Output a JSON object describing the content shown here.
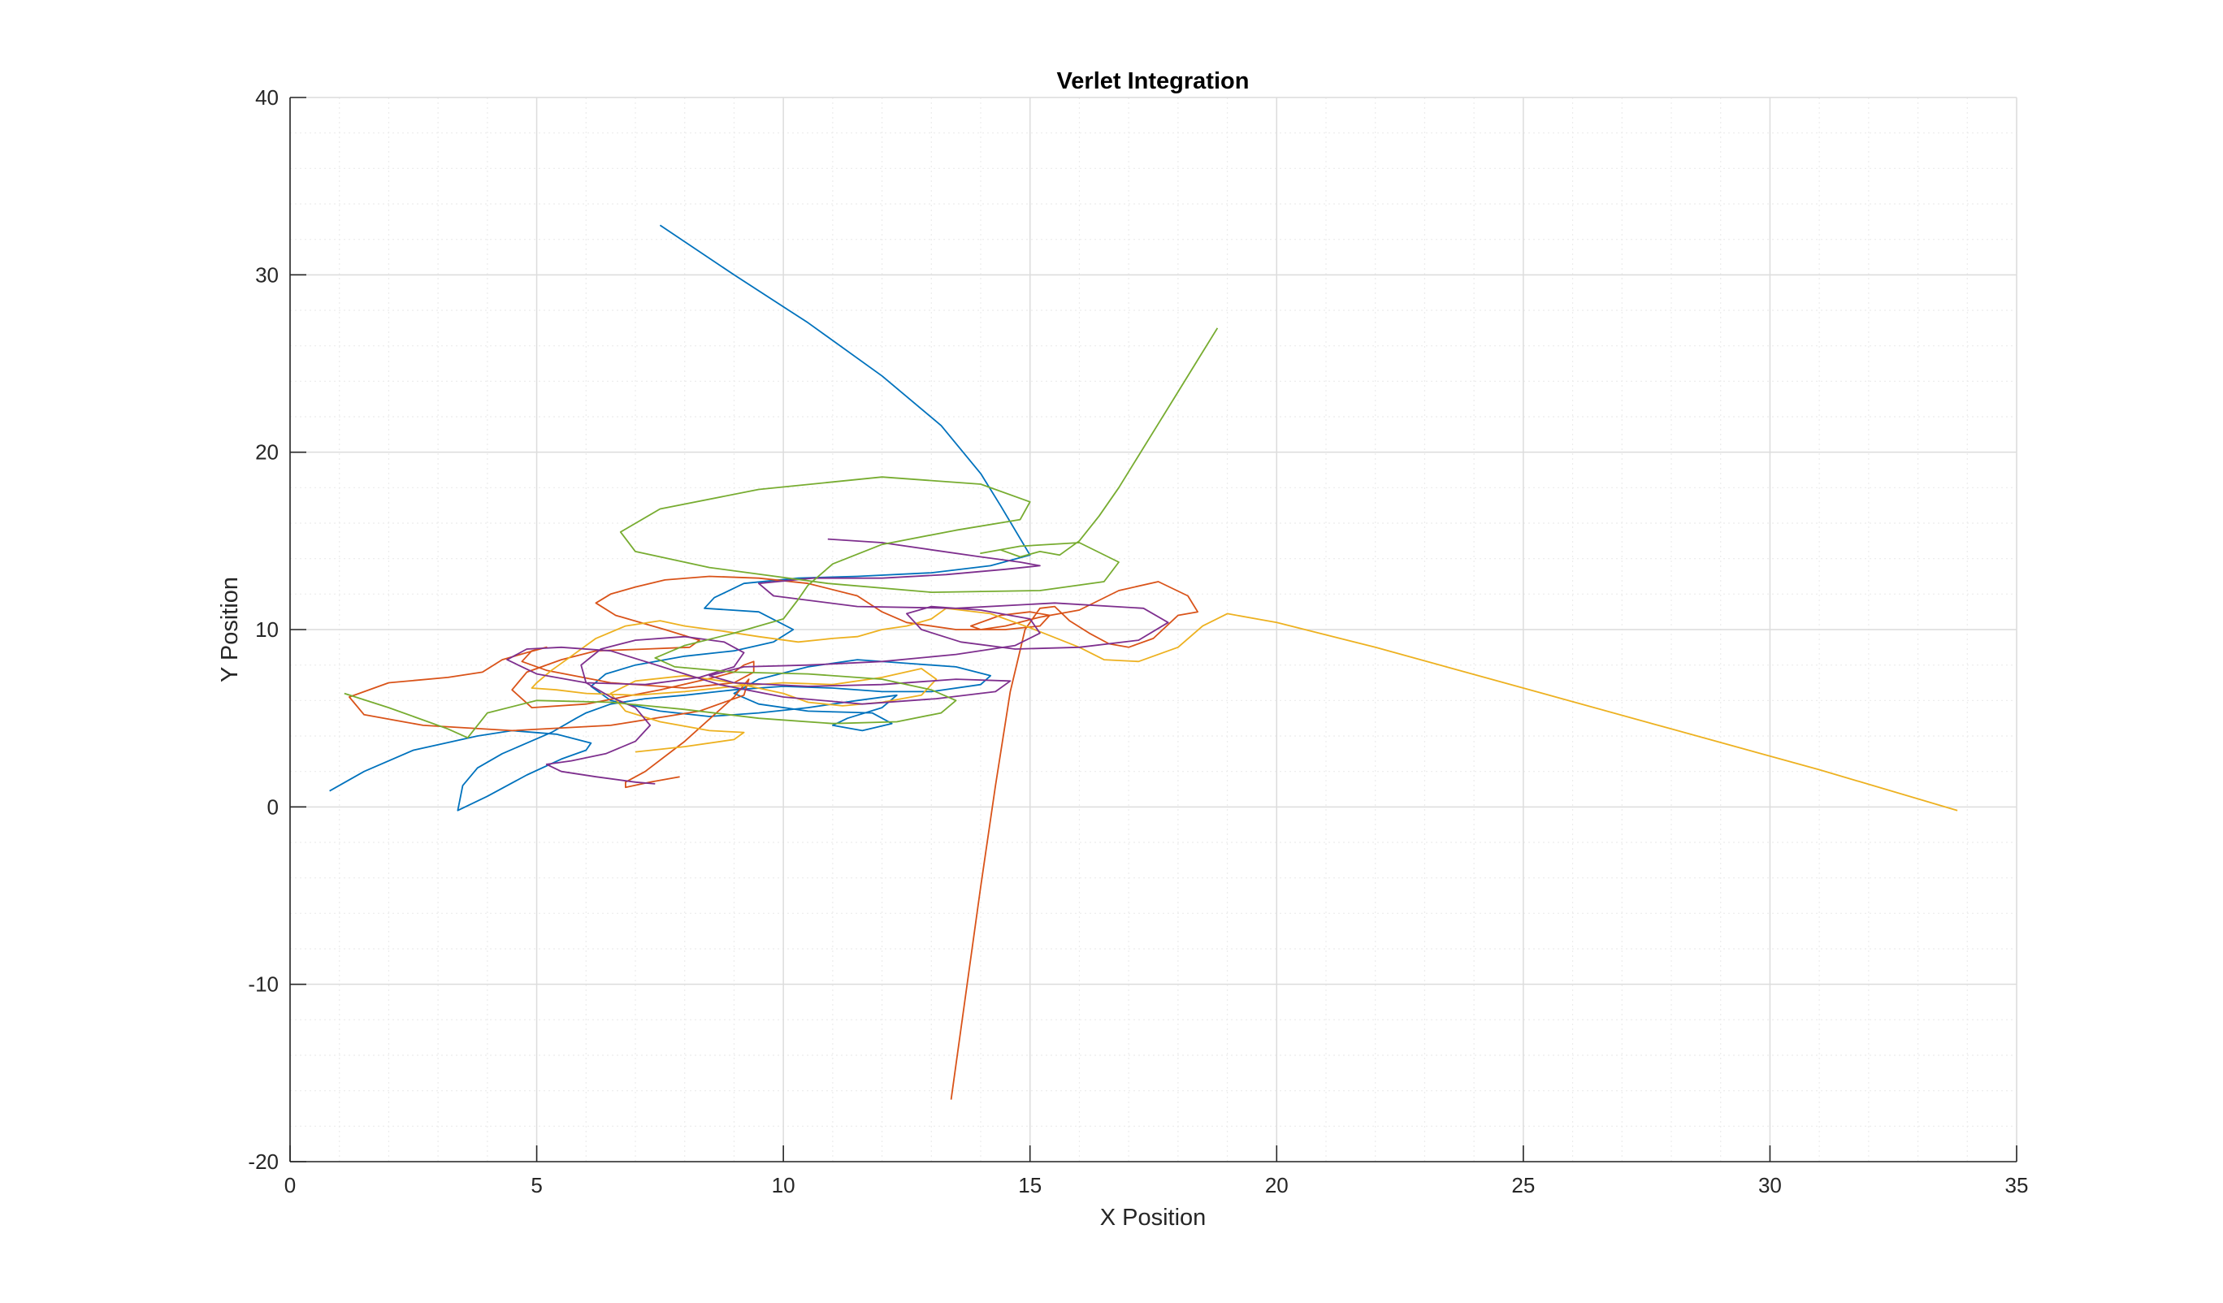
{
  "chart_data": {
    "type": "line",
    "title": "Verlet Integration",
    "xlabel": "X Position",
    "ylabel": "Y Position",
    "xlim": [
      0,
      35
    ],
    "ylim": [
      -20,
      40
    ],
    "xticks": [
      0,
      5,
      10,
      15,
      20,
      25,
      30,
      35
    ],
    "yticks": [
      -20,
      -10,
      0,
      10,
      20,
      30,
      40
    ],
    "grid": true,
    "minor_grid": true,
    "legend": "none",
    "colors": [
      "#0072BD",
      "#D95319",
      "#EDB120",
      "#7E2F8E",
      "#77AC30"
    ],
    "series": [
      {
        "color": "#0072BD",
        "x": [
          7.5,
          9.0,
          10.5,
          12.0,
          13.2,
          14.0,
          14.4,
          15.0,
          14.2,
          13.0,
          11.5,
          10.3,
          9.2,
          8.6,
          8.4,
          9.5,
          10.2,
          9.8,
          9.0,
          8.0,
          7.0,
          6.4,
          6.1,
          6.5,
          7.5,
          8.5,
          9.5,
          10.5,
          11.5,
          12.3,
          12.0,
          11.3,
          11.0,
          11.6,
          12.2,
          11.8,
          10.5,
          9.5,
          9.0,
          9.5,
          10.5,
          11.5,
          12.5,
          13.5,
          14.2,
          14.0,
          13.0,
          12.0,
          11.0,
          10.0,
          9.0,
          8.0,
          7.2,
          6.5,
          6.0,
          5.8,
          5.3,
          4.8,
          4.3,
          3.8,
          3.5,
          3.4,
          4.0,
          4.8,
          5.5,
          6.0,
          6.1,
          5.4,
          4.5,
          3.8,
          2.5,
          1.5,
          0.8
        ],
        "y": [
          32.8,
          30.0,
          27.3,
          24.3,
          21.5,
          18.8,
          17.0,
          14.2,
          13.6,
          13.2,
          13.0,
          12.9,
          12.6,
          11.8,
          11.2,
          11.0,
          10.0,
          9.3,
          8.8,
          8.5,
          8.0,
          7.5,
          6.8,
          6.0,
          5.4,
          5.1,
          5.3,
          5.6,
          6.0,
          6.3,
          5.6,
          5.0,
          4.6,
          4.3,
          4.7,
          5.3,
          5.4,
          5.8,
          6.4,
          7.2,
          7.9,
          8.3,
          8.1,
          7.9,
          7.4,
          6.9,
          6.5,
          6.5,
          6.7,
          6.8,
          6.6,
          6.3,
          6.1,
          5.8,
          5.3,
          5.0,
          4.2,
          3.6,
          3.0,
          2.2,
          1.2,
          -0.2,
          0.6,
          1.8,
          2.7,
          3.2,
          3.6,
          4.1,
          4.3,
          4.0,
          3.2,
          2.0,
          0.9
        ]
      },
      {
        "color": "#D95319",
        "x": [
          13.4,
          13.7,
          14.0,
          14.3,
          14.6,
          14.9,
          15.2,
          15.5,
          15.8,
          16.2,
          16.6,
          17.0,
          17.5,
          18.0,
          18.4,
          18.2,
          17.6,
          16.8,
          16.0,
          15.2,
          14.5,
          14.0,
          13.8,
          14.4,
          15.0,
          15.4,
          15.2,
          14.5,
          13.5,
          12.5,
          12.0,
          11.5,
          10.5,
          9.5,
          8.5,
          7.6,
          7.0,
          6.5,
          6.2,
          6.6,
          7.6,
          8.3,
          8.1,
          7.2,
          6.2,
          5.5,
          4.8,
          4.5,
          4.9,
          6.0,
          7.5,
          8.6,
          9.0,
          9.2,
          9.4,
          9.4,
          9.0,
          8.0,
          6.5,
          5.2,
          4.7,
          4.9,
          5.2,
          4.8,
          4.3,
          3.9,
          3.2,
          2.0,
          1.2,
          1.5,
          2.7,
          4.5,
          6.5,
          8.3,
          9.2,
          9.3,
          9.0,
          8.0,
          7.2,
          6.8,
          6.8,
          7.3,
          7.9
        ],
        "y": [
          -16.5,
          -10.5,
          -4.5,
          1.2,
          6.5,
          10.0,
          11.2,
          11.3,
          10.5,
          9.8,
          9.2,
          9.0,
          9.5,
          10.8,
          11.0,
          11.9,
          12.7,
          12.2,
          11.1,
          10.7,
          10.2,
          10.0,
          10.2,
          10.8,
          11.0,
          10.8,
          10.2,
          10.0,
          10.0,
          10.4,
          11.0,
          11.9,
          12.6,
          12.9,
          13.0,
          12.8,
          12.4,
          12.0,
          11.5,
          10.8,
          10.0,
          9.4,
          9.0,
          8.9,
          8.8,
          8.3,
          7.6,
          6.6,
          5.6,
          5.8,
          6.6,
          7.3,
          7.6,
          8.0,
          8.2,
          7.6,
          7.0,
          6.7,
          7.0,
          7.7,
          8.2,
          8.8,
          9.0,
          8.7,
          8.3,
          7.6,
          7.3,
          7.0,
          6.2,
          5.2,
          4.6,
          4.3,
          4.6,
          5.4,
          6.3,
          7.2,
          6.2,
          3.7,
          2.0,
          1.4,
          1.1,
          1.4,
          1.7
        ]
      },
      {
        "color": "#EDB120",
        "x": [
          33.8,
          31.0,
          28.0,
          25.0,
          22.0,
          20.0,
          19.0,
          18.5,
          18.0,
          17.2,
          16.5,
          16.0,
          15.0,
          14.2,
          13.6,
          13.3,
          13.0,
          12.5,
          12.0,
          11.5,
          11.0,
          10.3,
          9.5,
          8.8,
          8.0,
          7.5,
          6.8,
          6.2,
          5.7,
          5.3,
          5.0,
          4.9,
          5.4,
          6.0,
          7.0,
          8.0,
          9.0,
          10.0,
          11.0,
          12.0,
          12.8,
          13.1,
          12.8,
          12.0,
          11.2,
          10.5,
          10.0,
          9.0,
          8.0,
          7.0,
          6.5,
          6.8,
          7.5,
          8.5,
          9.2,
          9.0,
          8.0,
          7.0
        ],
        "y": [
          -0.2,
          2.1,
          4.4,
          6.7,
          9.0,
          10.4,
          10.9,
          10.2,
          9.0,
          8.2,
          8.3,
          9.0,
          10.1,
          10.9,
          11.1,
          11.2,
          10.6,
          10.2,
          10.0,
          9.6,
          9.5,
          9.3,
          9.6,
          9.9,
          10.2,
          10.5,
          10.2,
          9.5,
          8.5,
          7.7,
          7.0,
          6.7,
          6.6,
          6.4,
          6.3,
          6.5,
          6.8,
          7.0,
          6.9,
          7.3,
          7.8,
          7.2,
          6.3,
          5.9,
          5.7,
          5.9,
          6.4,
          7.0,
          7.4,
          7.1,
          6.4,
          5.4,
          4.8,
          4.3,
          4.2,
          3.8,
          3.4,
          3.1
        ]
      },
      {
        "color": "#7E2F8E",
        "x": [
          10.9,
          12.0,
          13.0,
          14.0,
          14.8,
          15.2,
          14.5,
          13.3,
          12.0,
          10.6,
          9.5,
          9.8,
          11.5,
          13.5,
          15.5,
          17.3,
          17.8,
          17.2,
          16.0,
          14.7,
          13.6,
          12.8,
          12.5,
          13.0,
          14.0,
          15.0,
          15.2,
          14.7,
          13.5,
          12.0,
          10.5,
          9.2,
          8.5,
          9.0,
          10.5,
          12.0,
          13.5,
          14.6,
          14.3,
          13.1,
          11.6,
          10.0,
          8.7,
          8.0,
          7.2,
          6.5,
          5.5,
          4.8,
          4.4,
          5.0,
          6.0,
          7.2,
          8.3,
          9.0,
          9.2,
          8.8,
          8.0,
          7.0,
          6.3,
          5.9,
          6.0,
          6.5,
          7.0,
          7.3,
          7.0,
          6.4,
          5.7,
          5.2,
          5.5,
          6.2,
          7.0,
          7.4
        ],
        "y": [
          15.1,
          14.9,
          14.5,
          14.1,
          13.8,
          13.6,
          13.4,
          13.1,
          12.9,
          12.9,
          12.6,
          11.9,
          11.3,
          11.2,
          11.5,
          11.2,
          10.4,
          9.4,
          9.0,
          8.9,
          9.3,
          10.0,
          10.9,
          11.3,
          11.1,
          10.6,
          9.8,
          9.1,
          8.6,
          8.2,
          8.0,
          7.9,
          7.4,
          7.0,
          6.8,
          6.9,
          7.2,
          7.1,
          6.5,
          6.1,
          5.8,
          6.2,
          6.9,
          7.5,
          8.2,
          8.8,
          9.0,
          8.9,
          8.3,
          7.5,
          7.0,
          6.9,
          7.3,
          7.9,
          8.7,
          9.3,
          9.6,
          9.4,
          8.9,
          8.0,
          7.0,
          6.2,
          5.6,
          4.6,
          3.7,
          3.0,
          2.6,
          2.4,
          2.0,
          1.7,
          1.4,
          1.3
        ]
      },
      {
        "color": "#77AC30",
        "x": [
          18.8,
          18.4,
          18.0,
          17.6,
          17.2,
          16.8,
          16.4,
          16.0,
          15.6,
          15.2,
          14.8,
          14.4,
          14.0,
          14.8,
          16.0,
          16.8,
          16.5,
          15.2,
          13.0,
          10.9,
          8.5,
          7.0,
          6.7,
          7.5,
          9.5,
          12.0,
          14.0,
          15.0,
          14.8,
          13.5,
          12.0,
          11.0,
          10.5,
          10.3,
          10.0,
          9.0,
          8.0,
          7.4,
          7.8,
          9.0,
          10.5,
          12.0,
          13.0,
          13.5,
          13.2,
          12.3,
          11.0,
          9.5,
          8.0,
          6.5,
          5.0,
          4.0,
          3.6,
          3.2,
          2.0,
          1.1
        ],
        "y": [
          27.0,
          25.2,
          23.4,
          21.6,
          19.8,
          18.0,
          16.4,
          15.0,
          14.2,
          14.4,
          14.1,
          14.5,
          14.3,
          14.7,
          14.9,
          13.8,
          12.7,
          12.2,
          12.1,
          12.6,
          13.5,
          14.4,
          15.5,
          16.8,
          17.9,
          18.6,
          18.2,
          17.2,
          16.2,
          15.6,
          14.8,
          13.7,
          12.5,
          11.7,
          10.6,
          9.8,
          9.1,
          8.4,
          7.9,
          7.6,
          7.5,
          7.2,
          6.6,
          6.0,
          5.3,
          4.8,
          4.7,
          5.0,
          5.5,
          5.9,
          6.0,
          5.3,
          3.9,
          4.4,
          5.6,
          6.4
        ]
      }
    ]
  }
}
